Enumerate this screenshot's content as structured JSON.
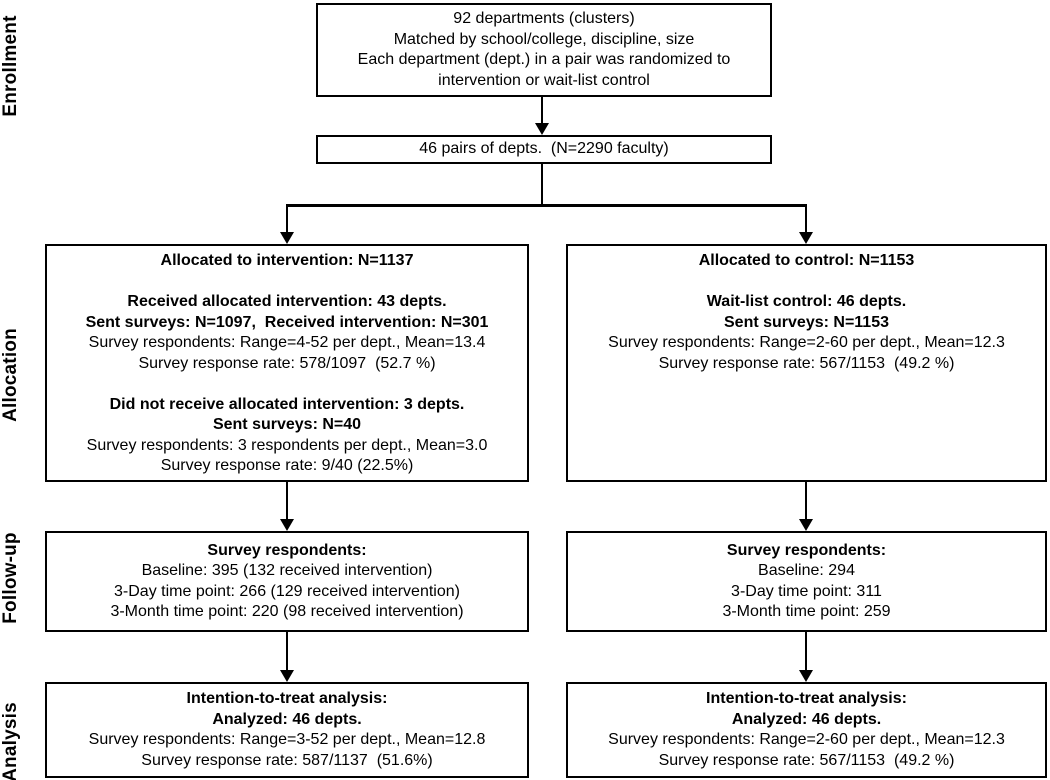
{
  "stage_labels": {
    "enrollment": "Enrollment",
    "allocation": "Allocation",
    "followup": "Follow-up",
    "analysis": "Analysis"
  },
  "enrollment_box": {
    "line1": "92 departments (clusters)",
    "line2": "Matched by school/college, discipline, size",
    "line3": "Each department (dept.) in a pair was randomized to",
    "line4": "intervention or wait-list control"
  },
  "pairs_box": {
    "text": "46 pairs of depts.  (N=2290 faculty)"
  },
  "allocation": {
    "intervention": {
      "title": "Allocated to intervention: N=1137",
      "received": {
        "line1": "Received allocated intervention: 43 depts.",
        "line2": "Sent surveys: N=1097,  Received intervention: N=301",
        "line3": "Survey respondents: Range=4-52 per dept., Mean=13.4",
        "line4": "Survey response rate: 578/1097  (52.7 %)"
      },
      "not_received": {
        "line1": "Did not receive allocated intervention: 3 depts.",
        "line2": "Sent surveys: N=40",
        "line3": "Survey respondents: 3 respondents per dept., Mean=3.0",
        "line4": "Survey response rate: 9/40 (22.5%)"
      }
    },
    "control": {
      "title": "Allocated to control: N=1153",
      "waitlist": {
        "line1": "Wait-list control: 46 depts.",
        "line2": "Sent surveys: N=1153",
        "line3": "Survey respondents: Range=2-60 per dept., Mean=12.3",
        "line4": "Survey response rate: 567/1153  (49.2 %)"
      }
    }
  },
  "followup": {
    "intervention": {
      "title": "Survey respondents:",
      "line1": "Baseline: 395 (132 received intervention)",
      "line2": "3-Day time point: 266 (129 received intervention)",
      "line3": "3-Month time point: 220 (98 received intervention)"
    },
    "control": {
      "title": "Survey respondents:",
      "line1": "Baseline: 294",
      "line2": "3-Day time point: 311",
      "line3": "3-Month time point: 259"
    }
  },
  "analysis": {
    "intervention": {
      "title": "Intention-to-treat analysis:",
      "subtitle": "Analyzed: 46 depts.",
      "line1": "Survey respondents: Range=3-52 per dept., Mean=12.8",
      "line2": "Survey response rate: 587/1137  (51.6%)"
    },
    "control": {
      "title": "Intention-to-treat analysis:",
      "subtitle": "Analyzed: 46 depts.",
      "line1": "Survey respondents: Range=2-60 per dept., Mean=12.3",
      "line2": "Survey response rate: 567/1153  (49.2 %)"
    }
  },
  "colors": {
    "border": "#000000",
    "background": "#ffffff",
    "text": "#000000"
  }
}
